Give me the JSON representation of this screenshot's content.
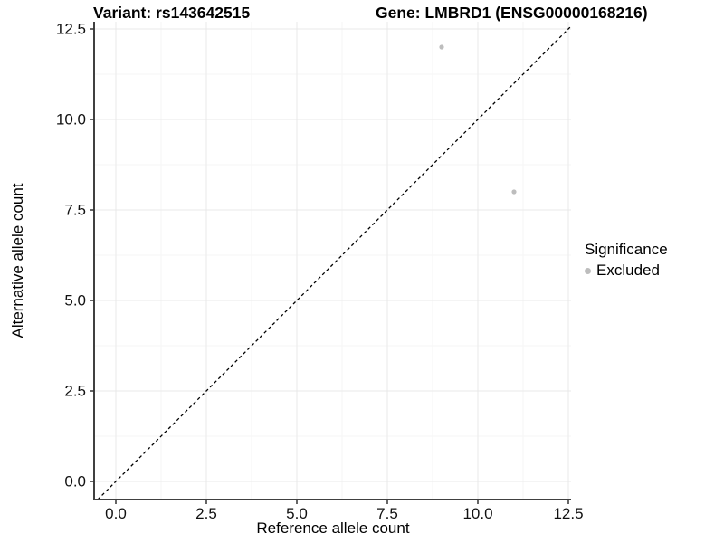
{
  "chart_data": {
    "type": "scatter",
    "title_left": "Variant: rs143642515",
    "title_right": "Gene: LMBRD1 (ENSG00000168216)",
    "xlabel": "Reference allele count",
    "ylabel": "Alternative allele count",
    "xlim": [
      -0.5,
      12.6
    ],
    "ylim": [
      -0.5,
      12.6
    ],
    "x_ticks": {
      "values": [
        0,
        2.5,
        5,
        7.5,
        10,
        12.5
      ],
      "labels": [
        "0.0",
        "2.5",
        "5.0",
        "7.5",
        "10.0",
        "12.5"
      ]
    },
    "y_ticks": {
      "values": [
        0,
        2.5,
        5,
        7.5,
        10,
        12.5
      ],
      "labels": [
        "0.0",
        "2.5",
        "5.0",
        "7.5",
        "10.0",
        "12.5"
      ]
    },
    "grid": "major and minor gridlines, white panel background",
    "reference_line": {
      "kind": "identity y = x",
      "style": "dashed",
      "color": "#000000"
    },
    "series": [
      {
        "name": "Excluded",
        "color": "#bdbdbd",
        "points": [
          {
            "x": 9,
            "y": 12
          },
          {
            "x": 11,
            "y": 8
          }
        ]
      }
    ],
    "legend": {
      "title": "Significance",
      "position": "right",
      "items": [
        {
          "label": "Excluded",
          "color": "#bdbdbd"
        }
      ]
    },
    "colors": {
      "grid_major": "#e9e9e9",
      "grid_minor": "#f5f5f5",
      "axis_line": "#404040",
      "tick_mark": "#333333",
      "tick_text": "#111111",
      "background": "#ffffff"
    }
  }
}
